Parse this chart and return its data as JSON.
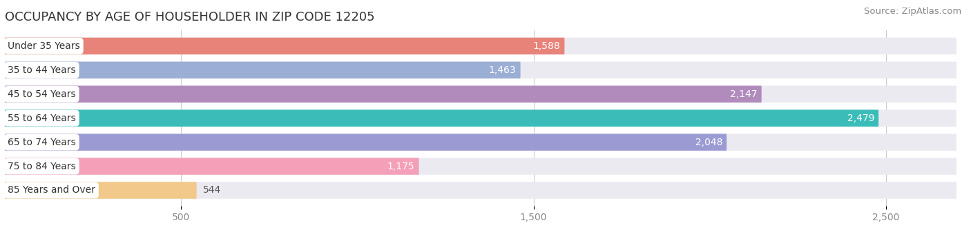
{
  "title": "OCCUPANCY BY AGE OF HOUSEHOLDER IN ZIP CODE 12205",
  "source": "Source: ZipAtlas.com",
  "categories": [
    "Under 35 Years",
    "35 to 44 Years",
    "45 to 54 Years",
    "55 to 64 Years",
    "65 to 74 Years",
    "75 to 84 Years",
    "85 Years and Over"
  ],
  "values": [
    1588,
    1463,
    2147,
    2479,
    2048,
    1175,
    544
  ],
  "bar_colors": [
    "#E8837A",
    "#9BAED4",
    "#B08BBB",
    "#3BBCB8",
    "#9B9BD4",
    "#F4A0B8",
    "#F2C98A"
  ],
  "bar_bg_color": "#EAEAF0",
  "xlim_max": 2700,
  "xticks": [
    500,
    1500,
    2500
  ],
  "xtick_labels": [
    "500",
    "1,500",
    "2,500"
  ],
  "title_fontsize": 13,
  "source_fontsize": 9.5,
  "label_fontsize": 10,
  "value_fontsize": 10,
  "background_color": "#FFFFFF",
  "bar_height": 0.7,
  "label_bg_color": "#FFFFFF",
  "grid_color": "#CCCCCC",
  "value_inside_threshold": 800
}
